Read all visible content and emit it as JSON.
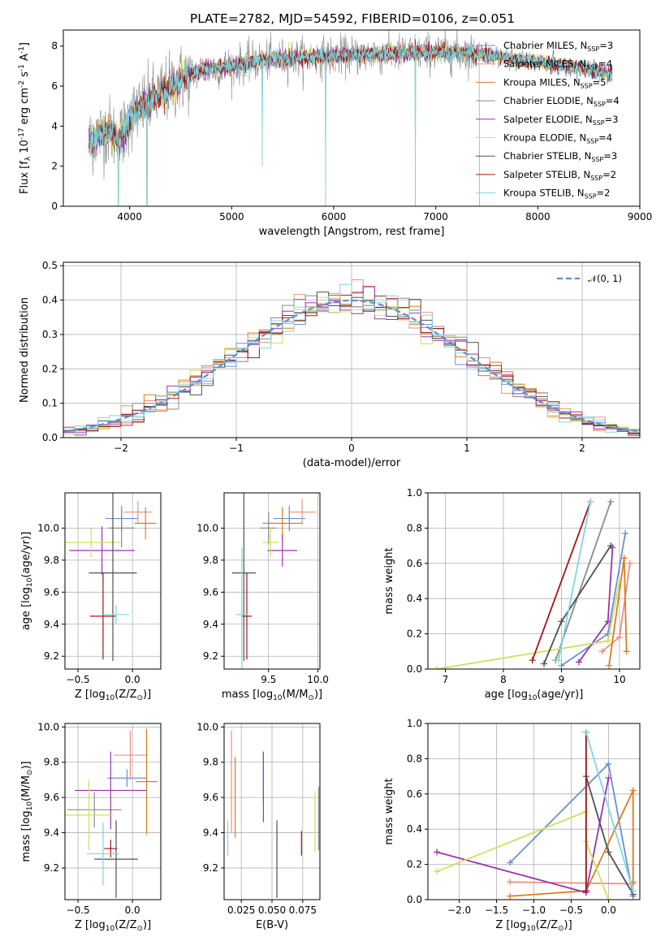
{
  "figure": {
    "title": "PLATE=2782, MJD=54592, FIBERID=0106, z=0.051"
  },
  "models": [
    {
      "name": "Chabrier MILES",
      "nssp": "3",
      "color": "#6a8fd4"
    },
    {
      "name": "Salpeter MILES",
      "nssp": "4",
      "color": "#e8917f"
    },
    {
      "name": "Kroupa MILES",
      "nssp": "5",
      "color": "#e07b1f"
    },
    {
      "name": "Chabrier ELODIE",
      "nssp": "4",
      "color": "#8c8c8c"
    },
    {
      "name": "Salpeter ELODIE",
      "nssp": "3",
      "color": "#9b32b4"
    },
    {
      "name": "Kroupa ELODIE",
      "nssp": "4",
      "color": "#cfe05a"
    },
    {
      "name": "Chabrier STELIB",
      "nssp": "3",
      "color": "#505050"
    },
    {
      "name": "Salpeter STELIB",
      "nssp": "2",
      "color": "#a31515"
    },
    {
      "name": "Kroupa STELIB",
      "nssp": "2",
      "color": "#7fd6e0"
    }
  ],
  "chart_data": [
    {
      "id": "spectrum",
      "type": "line",
      "xlabel": "wavelength [Angstrom, rest frame]",
      "ylabel": "Flux [f_λ 10^-17 erg cm^-2 s^-1 A^-1]",
      "xlim": [
        3350,
        9000
      ],
      "ylim": [
        0,
        8.8
      ],
      "xticks": [
        4000,
        5000,
        6000,
        7000,
        8000,
        9000
      ],
      "yticks": [
        0,
        2,
        4,
        6,
        8
      ],
      "legend_position": "right",
      "data_range": [
        3600,
        7430
      ],
      "model_range": [
        3600,
        8730
      ],
      "continuum": {
        "x": [
          3600,
          3700,
          3800,
          3900,
          4000,
          4100,
          4200,
          4300,
          4500,
          4700,
          5000,
          5300,
          5600,
          6000,
          6500,
          7000,
          7430,
          7700,
          8000,
          8300,
          8730
        ],
        "y": [
          3.2,
          3.6,
          3.8,
          3.3,
          4.4,
          4.9,
          5.2,
          5.6,
          6.3,
          6.8,
          7.0,
          7.3,
          7.4,
          7.5,
          7.6,
          7.7,
          7.6,
          7.4,
          7.2,
          7.0,
          6.6
        ]
      },
      "absorption_dips": [
        [
          5300,
          2.0
        ],
        [
          5920,
          0.0
        ],
        [
          6800,
          0.0
        ],
        [
          3890,
          0.0
        ],
        [
          4170,
          0.0
        ]
      ]
    },
    {
      "id": "residuals",
      "type": "histogram",
      "xlabel": "(data-model)/error",
      "ylabel": "Normed distribution",
      "xlim": [
        -2.5,
        2.5
      ],
      "ylim": [
        0,
        0.51
      ],
      "xticks": [
        -2,
        -1,
        0,
        1,
        2
      ],
      "yticks": [
        0.0,
        0.1,
        0.2,
        0.3,
        0.4,
        0.5
      ],
      "grid": true,
      "bin_width": 0.1,
      "reference": {
        "name": "𝒩(0, 1)",
        "mean": 0,
        "sigma": 1,
        "color": "#5b8fd6",
        "style": "dashed"
      },
      "legend_position": "top-right"
    },
    {
      "id": "age-vs-z",
      "type": "errorbar",
      "xlabel": "Z [log10(Z/Z⊙)]",
      "ylabel": "age  [log10(age/yr)]",
      "xlim": [
        -0.62,
        0.26
      ],
      "ylim": [
        9.12,
        10.22
      ],
      "xticks": [
        -0.5,
        0.0
      ],
      "yticks": [
        9.2,
        9.4,
        9.6,
        9.8,
        10.0
      ],
      "grid": true,
      "points": [
        {
          "model": 0,
          "x": -0.1,
          "y": 10.06,
          "xerr": 0.15,
          "yerr": 0.08
        },
        {
          "model": 1,
          "x": 0.05,
          "y": 10.1,
          "xerr": 0.13,
          "yerr": 0.07
        },
        {
          "model": 2,
          "x": 0.12,
          "y": 10.03,
          "xerr": 0.1,
          "yerr": 0.1
        },
        {
          "model": 3,
          "x": -0.1,
          "y": 10.0,
          "xerr": 0.12,
          "yerr": 0.12
        },
        {
          "model": 4,
          "x": -0.28,
          "y": 9.86,
          "xerr": 0.3,
          "yerr": 0.15
        },
        {
          "model": 5,
          "x": -0.38,
          "y": 9.91,
          "xerr": 0.27,
          "yerr": 0.09
        },
        {
          "model": 6,
          "x": -0.18,
          "y": 9.72,
          "xerr": 0.22,
          "yerr": 0.55
        },
        {
          "model": 7,
          "x": -0.27,
          "y": 9.45,
          "xerr": 0.12,
          "yerr": 0.27
        },
        {
          "model": 8,
          "x": -0.15,
          "y": 9.46,
          "xerr": 0.12,
          "yerr": 0.06
        }
      ]
    },
    {
      "id": "age-vs-mass",
      "type": "errorbar",
      "xlabel": "mass [log10(M/M⊙)]",
      "ylabel": "",
      "xlim": [
        9.05,
        10.02
      ],
      "ylim": [
        9.12,
        10.22
      ],
      "xticks": [
        9.5,
        10.0
      ],
      "yticks": [
        9.2,
        9.4,
        9.6,
        9.8,
        10.0
      ],
      "grid": true,
      "points": [
        {
          "model": 0,
          "x": 9.71,
          "y": 10.06,
          "xerr": 0.16,
          "yerr": 0.08
        },
        {
          "model": 1,
          "x": 9.84,
          "y": 10.1,
          "xerr": 0.14,
          "yerr": 0.08
        },
        {
          "model": 2,
          "x": 9.64,
          "y": 10.03,
          "xerr": 0.2,
          "yerr": 0.1
        },
        {
          "model": 3,
          "x": 9.5,
          "y": 10.0,
          "xerr": 0.08,
          "yerr": 0.1
        },
        {
          "model": 4,
          "x": 9.64,
          "y": 9.86,
          "xerr": 0.15,
          "yerr": 0.1
        },
        {
          "model": 5,
          "x": 9.52,
          "y": 9.91,
          "xerr": 0.08,
          "yerr": 0.09
        },
        {
          "model": 6,
          "x": 9.25,
          "y": 9.72,
          "xerr": 0.12,
          "yerr": 0.55
        },
        {
          "model": 7,
          "x": 9.28,
          "y": 9.45,
          "xerr": 0.05,
          "yerr": 0.27
        },
        {
          "model": 8,
          "x": 9.23,
          "y": 9.46,
          "xerr": 0.06,
          "yerr": 0.42
        }
      ]
    },
    {
      "id": "weight-vs-age",
      "type": "line",
      "xlabel": "age  [log10(age/yr)]",
      "ylabel": "mass weight",
      "xlim": [
        6.7,
        10.35
      ],
      "ylim": [
        0.0,
        1.0
      ],
      "xticks": [
        7,
        8,
        9,
        10
      ],
      "yticks": [
        0.0,
        0.2,
        0.4,
        0.6,
        0.8,
        1.0
      ],
      "grid": true,
      "series": [
        {
          "model": 0,
          "x": [
            9.0,
            9.8,
            10.1
          ],
          "y": [
            0.02,
            0.2,
            0.77
          ]
        },
        {
          "model": 1,
          "x": [
            9.7,
            10.0,
            10.18
          ],
          "y": [
            0.1,
            0.18,
            0.6
          ]
        },
        {
          "model": 2,
          "x": [
            9.82,
            10.08,
            10.12
          ],
          "y": [
            0.02,
            0.63,
            0.1
          ]
        },
        {
          "model": 3,
          "x": [
            8.9,
            9.85
          ],
          "y": [
            0.05,
            0.95
          ]
        },
        {
          "model": 4,
          "x": [
            9.3,
            9.8,
            9.88
          ],
          "y": [
            0.04,
            0.27,
            0.69
          ]
        },
        {
          "model": 5,
          "x": [
            6.85,
            9.8,
            10.0
          ],
          "y": [
            0.0,
            0.16,
            0.5
          ]
        },
        {
          "model": 6,
          "x": [
            8.7,
            9.0,
            9.85
          ],
          "y": [
            0.03,
            0.27,
            0.7
          ]
        },
        {
          "model": 7,
          "x": [
            8.5,
            9.5
          ],
          "y": [
            0.05,
            0.95
          ]
        },
        {
          "model": 8,
          "x": [
            8.95,
            9.5
          ],
          "y": [
            0.05,
            0.95
          ]
        }
      ]
    },
    {
      "id": "mass-vs-z",
      "type": "errorbar",
      "xlabel": "Z [log10(Z/Z⊙)]",
      "ylabel": "mass [log10(M/M⊙)]",
      "xlim": [
        -0.62,
        0.26
      ],
      "ylim": [
        9.02,
        10.02
      ],
      "xticks": [
        -0.5,
        0.0
      ],
      "yticks": [
        9.2,
        9.4,
        9.6,
        9.8,
        10.0
      ],
      "grid": true,
      "points": [
        {
          "model": 0,
          "x": -0.05,
          "y": 9.71,
          "xerr": 0.18,
          "yerr": 0.05
        },
        {
          "model": 1,
          "x": -0.02,
          "y": 9.84,
          "xerr": 0.15,
          "yerr": 0.14
        },
        {
          "model": 2,
          "x": 0.13,
          "y": 9.69,
          "xerr": 0.1,
          "yerr": 0.3
        },
        {
          "model": 3,
          "x": -0.35,
          "y": 9.53,
          "xerr": 0.25,
          "yerr": 0.1
        },
        {
          "model": 4,
          "x": -0.2,
          "y": 9.64,
          "xerr": 0.33,
          "yerr": 0.22
        },
        {
          "model": 5,
          "x": -0.4,
          "y": 9.5,
          "xerr": 0.22,
          "yerr": 0.2
        },
        {
          "model": 6,
          "x": -0.15,
          "y": 9.25,
          "xerr": 0.2,
          "yerr": 0.22
        },
        {
          "model": 7,
          "x": -0.2,
          "y": 9.31,
          "xerr": 0.06,
          "yerr": 0.05
        },
        {
          "model": 8,
          "x": -0.27,
          "y": 9.28,
          "xerr": 0.15,
          "yerr": 0.18
        }
      ]
    },
    {
      "id": "mass-vs-ebv",
      "type": "errorbar",
      "xlabel": "E(B-V)",
      "ylabel": "",
      "xlim": [
        0.011,
        0.089
      ],
      "ylim": [
        9.02,
        10.02
      ],
      "xticks": [
        0.025,
        0.05,
        0.075
      ],
      "yticks": [
        9.2,
        9.4,
        9.6,
        9.8,
        10.0
      ],
      "grid": true,
      "points": [
        {
          "model": 0,
          "x": 0.043,
          "y": 9.71,
          "xerr": 0.0,
          "yerr": 0.15
        },
        {
          "model": 1,
          "x": 0.017,
          "y": 9.69,
          "xerr": 0.0,
          "yerr": 0.29
        },
        {
          "model": 2,
          "x": 0.02,
          "y": 9.6,
          "xerr": 0.0,
          "yerr": 0.23
        },
        {
          "model": 3,
          "x": 0.088,
          "y": 9.48,
          "xerr": 0.0,
          "yerr": 0.18
        },
        {
          "model": 4,
          "x": 0.043,
          "y": 9.66,
          "xerr": 0.0,
          "yerr": 0.2
        },
        {
          "model": 5,
          "x": 0.085,
          "y": 9.46,
          "xerr": 0.0,
          "yerr": 0.17
        },
        {
          "model": 6,
          "x": 0.054,
          "y": 9.25,
          "xerr": 0.0,
          "yerr": 0.22
        },
        {
          "model": 7,
          "x": 0.074,
          "y": 9.34,
          "xerr": 0.0,
          "yerr": 0.07
        },
        {
          "model": 8,
          "x": 0.014,
          "y": 9.37,
          "xerr": 0.0,
          "yerr": 0.1
        }
      ]
    },
    {
      "id": "weight-vs-z",
      "type": "line",
      "xlabel": "Z [log10(Z/Z⊙)]",
      "ylabel": "mass weight",
      "xlim": [
        -2.42,
        0.42
      ],
      "ylim": [
        0.0,
        1.0
      ],
      "xticks": [
        -2.0,
        -1.5,
        -1.0,
        -0.5,
        0.0
      ],
      "yticks": [
        0.0,
        0.2,
        0.4,
        0.6,
        0.8,
        1.0
      ],
      "grid": true,
      "series": [
        {
          "model": 0,
          "x": [
            -1.32,
            0.0,
            0.33
          ],
          "y": [
            0.21,
            0.77,
            0.02
          ]
        },
        {
          "model": 1,
          "x": [
            -1.32,
            0.33
          ],
          "y": [
            0.1,
            0.09
          ]
        },
        {
          "model": 2,
          "x": [
            -1.32,
            -0.3,
            0.33,
            0.33
          ],
          "y": [
            0.02,
            0.05,
            0.62,
            0.1
          ]
        },
        {
          "model": 3,
          "x": [
            -0.3,
            -0.3
          ],
          "y": [
            0.05,
            0.95
          ]
        },
        {
          "model": 4,
          "x": [
            -2.3,
            -0.3,
            0.0
          ],
          "y": [
            0.27,
            0.04,
            0.69
          ]
        },
        {
          "model": 5,
          "x": [
            -2.3,
            -0.3,
            -0.3,
            0.0
          ],
          "y": [
            0.16,
            0.5,
            0.33,
            0.0
          ]
        },
        {
          "model": 6,
          "x": [
            -0.3,
            0.0,
            0.33
          ],
          "y": [
            0.7,
            0.27,
            0.03
          ]
        },
        {
          "model": 7,
          "x": [
            -0.3,
            -0.3
          ],
          "y": [
            0.05,
            0.95
          ]
        },
        {
          "model": 8,
          "x": [
            -0.3,
            0.33
          ],
          "y": [
            0.95,
            0.05
          ]
        }
      ]
    }
  ]
}
